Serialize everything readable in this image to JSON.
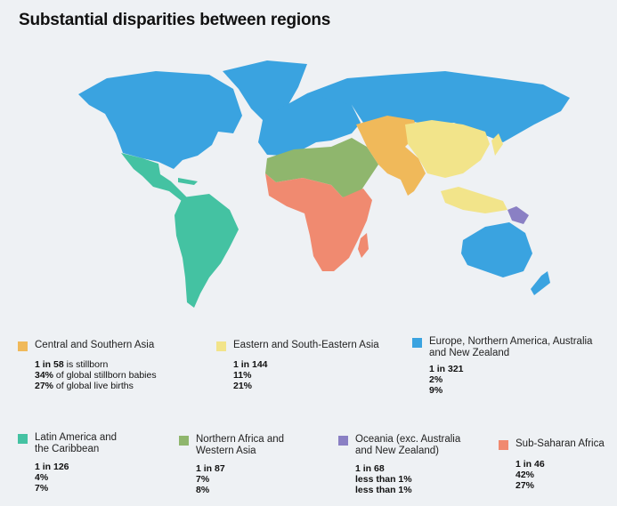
{
  "title": "Substantial disparities between regions",
  "colors": {
    "background": "#eef1f4",
    "central_southern_asia": "#f0b95a",
    "eastern_southeastern_asia": "#f2e48a",
    "europe_na_anz": "#3aa3e0",
    "latin_america": "#44c2a2",
    "northern_africa_western_asia": "#8fb66d",
    "oceania": "#8a80c4",
    "sub_saharan_africa": "#f08a70"
  },
  "legend": [
    {
      "name": "Central and Southern Asia",
      "color": "#f0b95a",
      "ratio": "1 in 58",
      "ratio_suffix": " is stillborn",
      "stillborn_share": "34%",
      "stillborn_suffix": " of global stillborn babies",
      "births_share": "27%",
      "births_suffix": " of global live births"
    },
    {
      "name": "Eastern and South-Eastern Asia",
      "color": "#f2e48a",
      "ratio": "1 in 144",
      "stillborn_share": "11%",
      "births_share": "21%"
    },
    {
      "name": "Europe, Northern America, Australia and New Zealand",
      "color": "#3aa3e0",
      "ratio": "1 in 321",
      "stillborn_share": "2%",
      "births_share": "9%"
    },
    {
      "name": "Latin America and the Caribbean",
      "color": "#44c2a2",
      "ratio": "1 in 126",
      "stillborn_share": "4%",
      "births_share": "7%"
    },
    {
      "name": "Northern Africa and Western Asia",
      "color": "#8fb66d",
      "ratio": "1 in 87",
      "stillborn_share": "7%",
      "births_share": "8%"
    },
    {
      "name": "Oceania (exc. Australia and New Zealand)",
      "color": "#8a80c4",
      "ratio": "1 in 68",
      "stillborn_share": "less than 1%",
      "births_share": "less than 1%"
    },
    {
      "name": "Sub-Saharan Africa",
      "color": "#f08a70",
      "ratio": "1 in 46",
      "stillborn_share": "42%",
      "births_share": "27%"
    }
  ]
}
